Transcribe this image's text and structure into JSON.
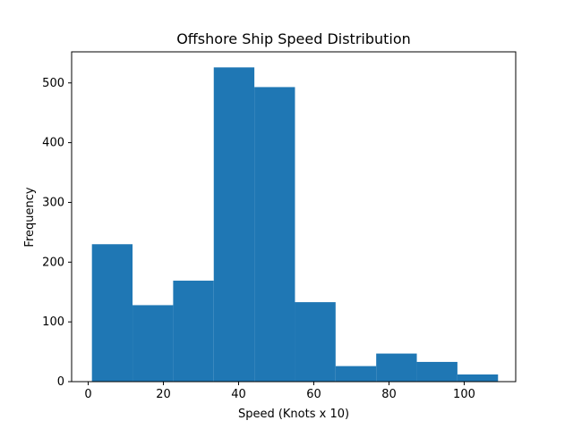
{
  "chart_data": {
    "type": "bar",
    "title": "Offshore Ship Speed Distribution",
    "xlabel": "Speed (Knots x 10)",
    "ylabel": "Frequency",
    "xlim": [
      -4.4,
      113.7
    ],
    "ylim": [
      0,
      552
    ],
    "x_ticks": [
      0,
      20,
      40,
      60,
      80,
      100
    ],
    "y_ticks": [
      0,
      100,
      200,
      300,
      400,
      500
    ],
    "grid": false,
    "legend": "none",
    "bar_color": "#1f77b4",
    "bins": [
      {
        "x_start": 1.0,
        "x_end": 11.8,
        "value": 230
      },
      {
        "x_start": 11.8,
        "x_end": 22.6,
        "value": 128
      },
      {
        "x_start": 22.6,
        "x_end": 33.4,
        "value": 169
      },
      {
        "x_start": 33.4,
        "x_end": 44.2,
        "value": 526
      },
      {
        "x_start": 44.2,
        "x_end": 55.0,
        "value": 493
      },
      {
        "x_start": 55.0,
        "x_end": 65.8,
        "value": 133
      },
      {
        "x_start": 65.8,
        "x_end": 76.6,
        "value": 26
      },
      {
        "x_start": 76.6,
        "x_end": 87.4,
        "value": 47
      },
      {
        "x_start": 87.4,
        "x_end": 98.2,
        "value": 33
      },
      {
        "x_start": 98.2,
        "x_end": 109.0,
        "value": 12
      }
    ]
  }
}
